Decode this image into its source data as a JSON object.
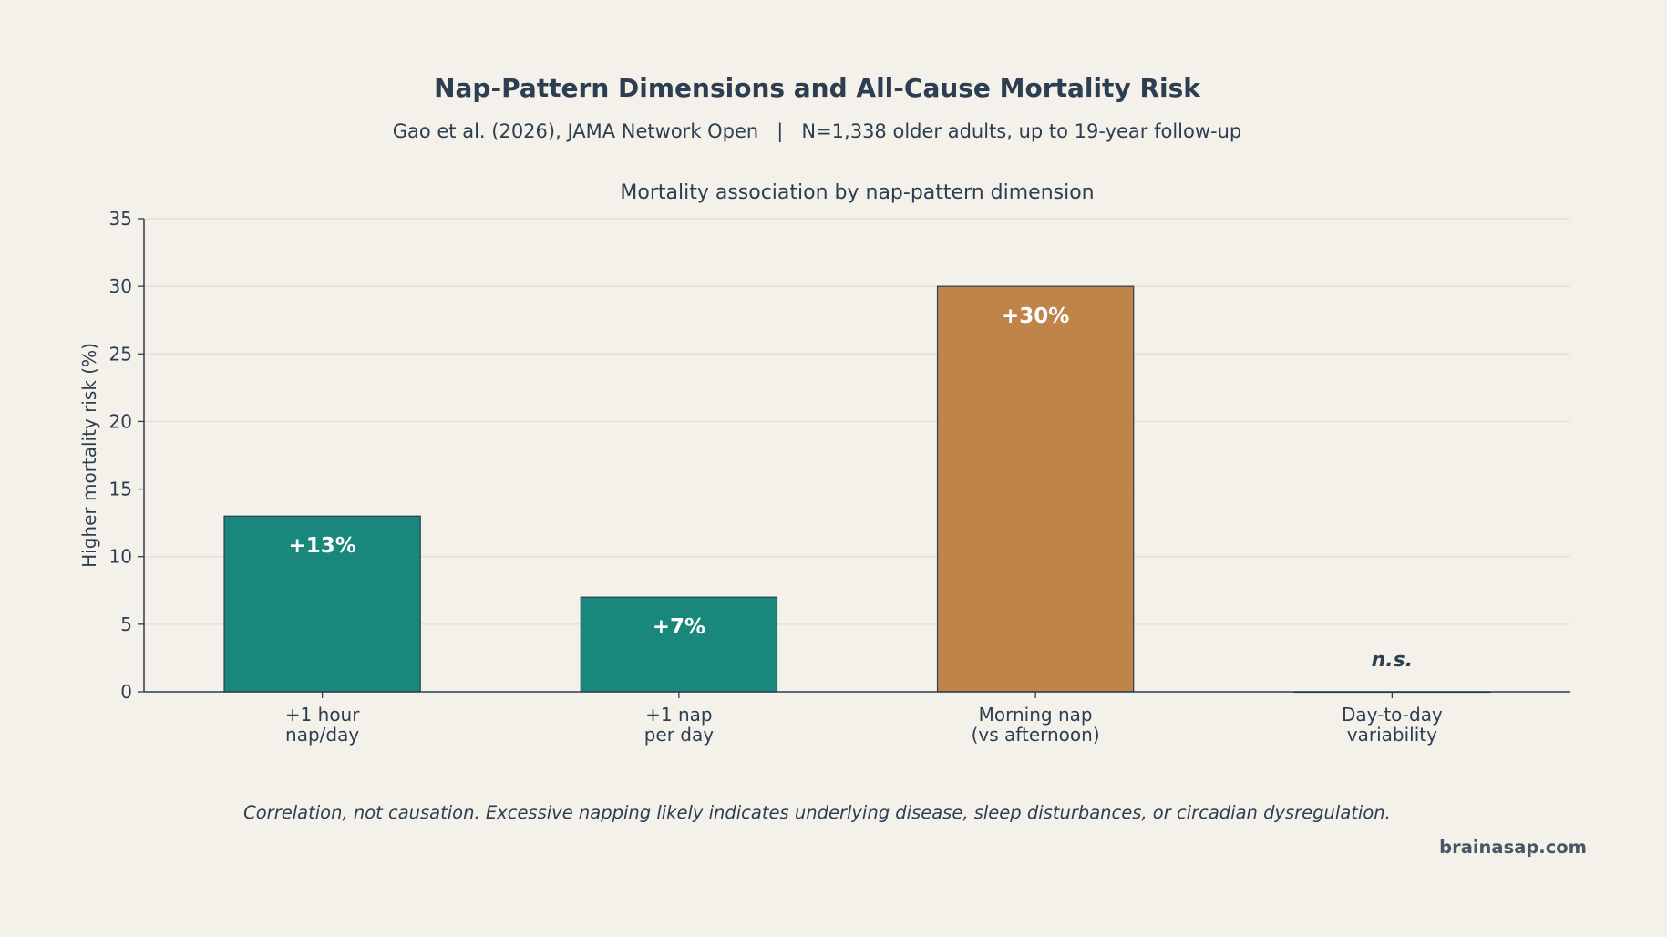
{
  "title": "Nap-Pattern Dimensions and All-Cause Mortality Risk",
  "subtitle": "Gao et al. (2026), JAMA Network Open   |   N=1,338 older adults, up to 19-year follow-up",
  "footnote": "Correlation, not causation. Excessive napping likely indicates underlying disease, sleep disturbances, or circadian dysregulation.",
  "watermark": "brainasap.com",
  "colors": {
    "background": "#f4f1eb",
    "text": "#2c3e50",
    "teal": "#19877b",
    "orange": "#c0834a",
    "grid": "#e0ddd6"
  },
  "chart_data": {
    "type": "bar",
    "title": "Mortality association by nap-pattern dimension",
    "xlabel": "",
    "ylabel": "Higher mortality risk (%)",
    "ylim": [
      0,
      35
    ],
    "yticks": [
      0,
      5,
      10,
      15,
      20,
      25,
      30,
      35
    ],
    "grid": true,
    "categories": [
      [
        "+1 hour",
        "nap/day"
      ],
      [
        "+1 nap",
        "per day"
      ],
      [
        "Morning nap",
        "(vs afternoon)"
      ],
      [
        "Day-to-day",
        "variability"
      ]
    ],
    "values": [
      13,
      7,
      30,
      0
    ],
    "bar_labels": [
      "+13%",
      "+7%",
      "+30%",
      "n.s."
    ],
    "bar_colors": [
      "#19877b",
      "#19877b",
      "#c0834a",
      "#19877b"
    ],
    "label_styles": [
      "inside",
      "inside",
      "inside",
      "above-italic"
    ]
  }
}
